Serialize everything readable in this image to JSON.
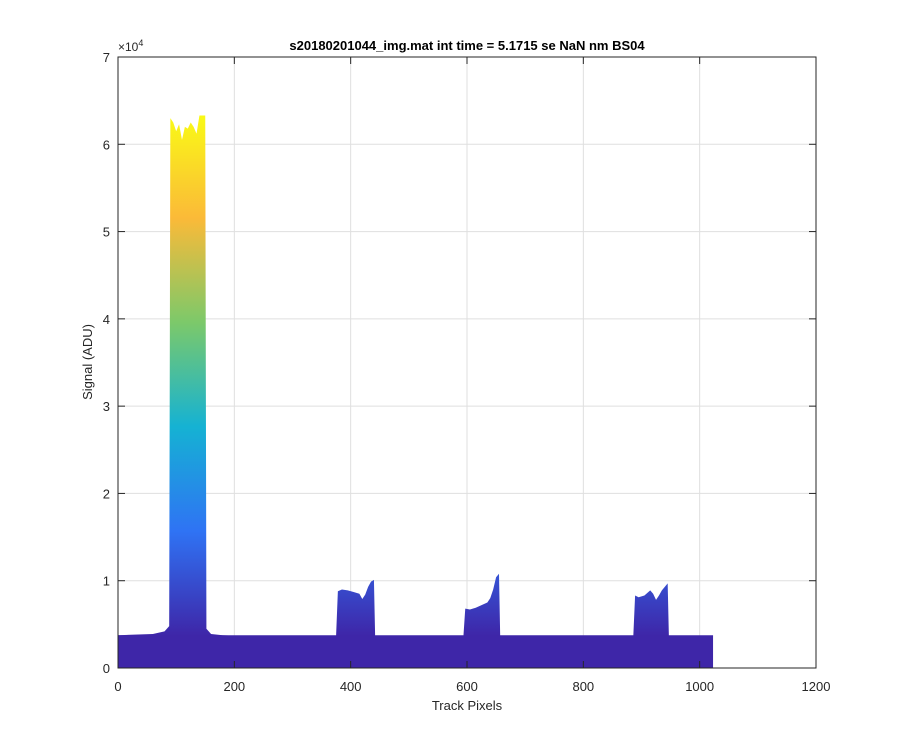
{
  "chart_data": {
    "type": "area",
    "title": "s20180201044_img.mat int time = 5.1715 se  NaN nm BS04",
    "xlabel": "Track Pixels",
    "ylabel": "Signal (ADU)",
    "xlim": [
      0,
      1200
    ],
    "ylim": [
      0,
      70000
    ],
    "x_ticks": [
      "0",
      "200",
      "400",
      "600",
      "800",
      "1000",
      "1200"
    ],
    "y_ticks": [
      "0",
      "1",
      "2",
      "3",
      "4",
      "5",
      "6",
      "7"
    ],
    "y_exponent_base": "×10",
    "y_exponent_power": "4",
    "grid": true,
    "colormap": [
      "#3e26a8",
      "#2f73f4",
      "#15b2d3",
      "#7cc96a",
      "#fbba38",
      "#f9fb15"
    ],
    "baseline_level": 3700,
    "baseline_x_end": 1023,
    "series": [
      {
        "x": [
          0,
          60,
          80,
          88,
          90,
          95,
          100,
          105,
          110,
          115,
          120,
          125,
          130,
          135,
          140,
          145,
          150,
          152,
          160,
          180,
          200,
          300,
          1023
        ],
        "y": [
          3750,
          3900,
          4200,
          4800,
          63000,
          62500,
          61500,
          62300,
          60500,
          62000,
          61800,
          62500,
          62000,
          61200,
          63300,
          63300,
          63300,
          4500,
          3900,
          3750,
          3700,
          3700,
          3700
        ]
      },
      {
        "x": [
          375,
          378,
          385,
          395,
          405,
          415,
          420,
          425,
          430,
          435,
          440,
          442
        ],
        "y": [
          3800,
          8800,
          9000,
          8900,
          8700,
          8500,
          7900,
          8400,
          9300,
          9900,
          10100,
          3800
        ]
      },
      {
        "x": [
          594,
          597,
          605,
          615,
          625,
          635,
          640,
          645,
          650,
          655,
          657
        ],
        "y": [
          3800,
          6800,
          6700,
          6900,
          7200,
          7500,
          8000,
          9000,
          10400,
          10800,
          3800
        ]
      },
      {
        "x": [
          886,
          889,
          895,
          905,
          915,
          920,
          925,
          930,
          935,
          940,
          945,
          947
        ],
        "y": [
          3800,
          8300,
          8100,
          8300,
          8900,
          8500,
          7800,
          8300,
          8900,
          9300,
          9700,
          3800
        ]
      }
    ]
  }
}
